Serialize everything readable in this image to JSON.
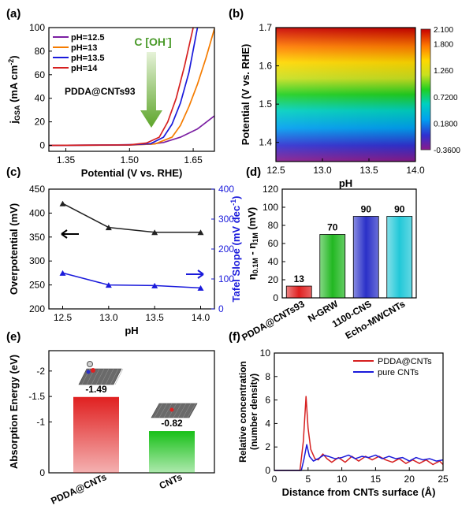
{
  "chart_data": [
    {
      "panel": "(a)",
      "type": "line",
      "xlabel": "Potential (V vs. RHE)",
      "ylabel_main": "j",
      "ylabel_sub": "GSA",
      "ylabel_unit": "(mA cm",
      "ylabel_sup": "-2",
      "ylabel_end": ")",
      "xlim": [
        1.31,
        1.7
      ],
      "ylim": [
        -5,
        100
      ],
      "xticks": [
        "1.35",
        "1.50",
        "1.65"
      ],
      "yticks": [
        "0",
        "20",
        "40",
        "60",
        "80",
        "100"
      ],
      "annotation": "PDDA@CNTs93",
      "arrow_label": "C [OH",
      "arrow_label_sup": "-",
      "arrow_label_end": "]",
      "series": [
        {
          "name": "pH=12.5",
          "color": "#7b1fa2",
          "x": [
            1.31,
            1.45,
            1.55,
            1.58,
            1.62,
            1.66,
            1.7
          ],
          "y": [
            0,
            0.3,
            1.0,
            2.5,
            7,
            14,
            25
          ]
        },
        {
          "name": "pH=13",
          "color": "#f57c00",
          "x": [
            1.31,
            1.5,
            1.56,
            1.6,
            1.62,
            1.64,
            1.66,
            1.68,
            1.7
          ],
          "y": [
            0,
            0.3,
            1.2,
            7,
            17,
            33,
            52,
            74,
            99
          ]
        },
        {
          "name": "pH=13.5",
          "color": "#1a1adb",
          "x": [
            1.31,
            1.5,
            1.55,
            1.58,
            1.6,
            1.62,
            1.64,
            1.66
          ],
          "y": [
            0,
            0.4,
            1.5,
            7,
            18,
            36,
            62,
            100
          ]
        },
        {
          "name": "pH=14",
          "color": "#d62020",
          "x": [
            1.31,
            1.5,
            1.54,
            1.57,
            1.59,
            1.61,
            1.63,
            1.65
          ],
          "y": [
            0,
            0.5,
            2,
            7,
            20,
            40,
            68,
            100
          ]
        }
      ]
    },
    {
      "panel": "(b)",
      "type": "heatmap",
      "xlabel": "pH",
      "ylabel": "Potential (V vs. RHE)",
      "xlim": [
        12.5,
        14.0
      ],
      "ylim": [
        1.35,
        1.7
      ],
      "xticks": [
        "12.5",
        "13.0",
        "13.5",
        "14.0"
      ],
      "yticks": [
        "1.4",
        "1.5",
        "1.6",
        "1.7"
      ],
      "colorbar_ticks": [
        "2.100",
        "1.800",
        "1.260",
        "0.7200",
        "0.1800",
        "-0.3600"
      ],
      "colorbar_range": [
        -0.36,
        2.1
      ]
    },
    {
      "panel": "(c)",
      "type": "line",
      "xlabel": "pH",
      "ylabel_left": "Overpotential (mV)",
      "ylabel_right": "Tafel Slope (mV dec",
      "ylabel_right_sup": "-1",
      "ylabel_right_end": ")",
      "xlim": [
        12.35,
        14.15
      ],
      "ylim_left": [
        200,
        450
      ],
      "ylim_right": [
        0,
        400
      ],
      "xticks": [
        "12.5",
        "13.0",
        "13.5",
        "14.0"
      ],
      "yticks_left": [
        "200",
        "250",
        "300",
        "350",
        "400",
        "450"
      ],
      "yticks_right": [
        "0",
        "100",
        "200",
        "300",
        "400"
      ],
      "x": [
        12.5,
        13.0,
        13.5,
        14.0
      ],
      "overpotential": [
        420,
        370,
        360,
        360
      ],
      "tafel": [
        120,
        80,
        78,
        70
      ]
    },
    {
      "panel": "(d)",
      "type": "bar",
      "ylabel_main": "η",
      "ylabel_sub1": "0.1M",
      "ylabel_mid": " - η",
      "ylabel_sub2": "1M",
      "ylabel_unit": " (mV)",
      "ylim": [
        0,
        120
      ],
      "yticks": [
        "0",
        "20",
        "40",
        "60",
        "80",
        "100",
        "120"
      ],
      "categories": [
        "PDDA@CNTs93",
        "N-GRW",
        "1100-CNS",
        "Echo-MWCNTs"
      ],
      "values": [
        13,
        70,
        90,
        90
      ],
      "labels": [
        "13",
        "70",
        "90",
        "90"
      ],
      "colors": [
        "#e02020",
        "#22b822",
        "#2a30c8",
        "#22c8d8"
      ]
    },
    {
      "panel": "(e)",
      "type": "bar",
      "ylabel": "Absorption Energy (eV)",
      "ylim": [
        0,
        -2.5
      ],
      "yticks": [
        "0",
        "-1",
        "-1.5",
        "-2"
      ],
      "categories": [
        "PDDA@CNTs",
        "CNTs"
      ],
      "values": [
        -1.49,
        -0.82
      ],
      "labels": [
        "-1.49",
        "-0.82"
      ],
      "colors": [
        "#e02020",
        "#18c018"
      ]
    },
    {
      "panel": "(f)",
      "type": "line",
      "xlabel": "Distance from CNTs surface (Å)",
      "ylabel_line1": "Relative concentration",
      "ylabel_line2": "(number density)",
      "xlim": [
        0,
        25
      ],
      "ylim": [
        0,
        10
      ],
      "xticks": [
        "0",
        "5",
        "10",
        "15",
        "20",
        "25"
      ],
      "yticks": [
        "0",
        "2",
        "4",
        "6",
        "8",
        "10"
      ],
      "series": [
        {
          "name": "PDDA@CNTs",
          "color": "#d62020",
          "x": [
            0,
            3.8,
            4.3,
            4.7,
            5.0,
            5.4,
            6,
            6.5,
            7.2,
            7.8,
            8.5,
            9.5,
            10.5,
            11.5,
            12.5,
            13.5,
            14.5,
            15.5,
            16.5,
            17.5,
            18.5,
            19.5,
            20.5,
            21.5,
            22.5,
            23.5,
            24.5,
            25
          ],
          "y": [
            0,
            0,
            2.5,
            6.3,
            3.6,
            1.8,
            1.0,
            0.9,
            1.4,
            1.0,
            0.7,
            1.1,
            0.7,
            1.2,
            0.8,
            1.2,
            0.9,
            1.2,
            0.9,
            0.7,
            1.0,
            0.6,
            0.9,
            0.6,
            0.9,
            0.5,
            0.8,
            0.5
          ]
        },
        {
          "name": "pure CNTs",
          "color": "#1a1adb",
          "x": [
            0,
            4.0,
            4.4,
            4.8,
            5.2,
            5.8,
            6.5,
            7.3,
            8.0,
            9.0,
            10,
            11,
            12,
            13,
            14,
            15,
            16,
            17,
            18,
            19,
            20,
            21,
            22,
            23,
            24,
            25
          ],
          "y": [
            0,
            0,
            1.0,
            2.2,
            1.2,
            0.8,
            1.0,
            1.3,
            1.2,
            1.0,
            1.1,
            1.3,
            1.0,
            1.2,
            1.1,
            1.3,
            1.0,
            1.2,
            1.0,
            1.1,
            0.8,
            1.1,
            0.9,
            1.0,
            0.8,
            0.9
          ]
        }
      ]
    }
  ]
}
